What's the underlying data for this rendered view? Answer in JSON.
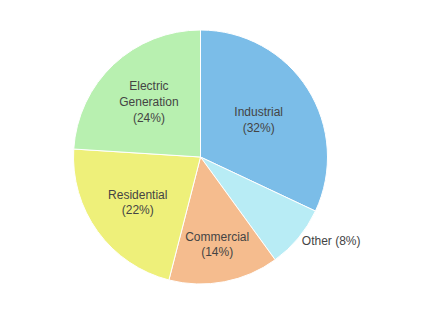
{
  "chart_data": {
    "type": "pie",
    "categories": [
      "Industrial\n(32%)",
      "Other (8%)",
      "Commercial\n(14%)",
      "Residential\n(22%)",
      "Electric\nGeneration\n(24%)"
    ],
    "values": [
      32,
      8,
      14,
      22,
      24
    ],
    "colors": [
      "#7bbde8",
      "#b8ecf5",
      "#f5bc8e",
      "#eef07a",
      "#b8f0b0"
    ]
  }
}
